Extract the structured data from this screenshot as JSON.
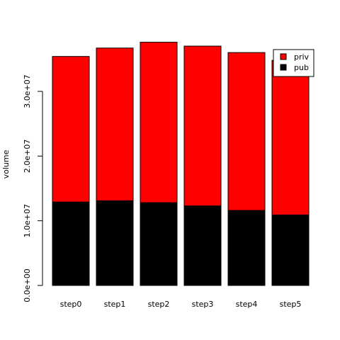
{
  "chart_data": {
    "type": "bar",
    "stacked": true,
    "title": "",
    "xlabel": "",
    "ylabel": "volume",
    "categories": [
      "step0",
      "step1",
      "step2",
      "step3",
      "step4",
      "step5"
    ],
    "series": [
      {
        "name": "pub",
        "color": "#000000",
        "values": [
          12900000,
          13100000,
          12800000,
          12300000,
          11600000,
          10900000
        ]
      },
      {
        "name": "priv",
        "color": "#ff0000",
        "values": [
          22500000,
          23600000,
          24800000,
          24700000,
          24400000,
          23900000
        ]
      }
    ],
    "ylim": [
      0,
      35000000
    ],
    "yticks": [
      0,
      10000000,
      20000000,
      30000000
    ],
    "ytick_labels": [
      "0.0e+00",
      "1.0e+07",
      "2.0e+07",
      "3.0e+07"
    ],
    "grid": false,
    "legend": {
      "position": "top-right",
      "entries": [
        {
          "label": "priv",
          "color": "#ff0000"
        },
        {
          "label": "pub",
          "color": "#000000"
        }
      ]
    }
  }
}
